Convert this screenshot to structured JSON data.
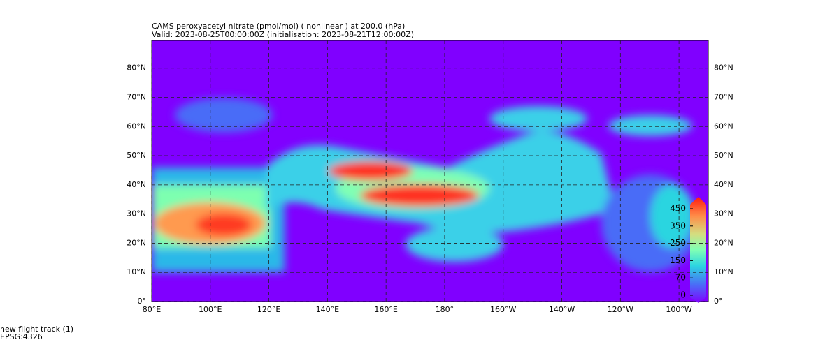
{
  "title": "CAMS peroxyacetyl nitrate (pmol/mol) ( nonlinear ) at 200.0 (hPa)",
  "subtitle": "Valid: 2023-08-25T00:00:00Z (initialisation: 2023-08-21T12:00:00Z)",
  "map": {
    "lonlim": [
      80,
      270
    ],
    "latlim": [
      0,
      89.5
    ],
    "lon_ticks": [
      {
        "value": 80,
        "label": "80°E"
      },
      {
        "value": 100,
        "label": "100°E"
      },
      {
        "value": 120,
        "label": "120°E"
      },
      {
        "value": 140,
        "label": "140°E"
      },
      {
        "value": 160,
        "label": "160°E"
      },
      {
        "value": 180,
        "label": "180°"
      },
      {
        "value": 200,
        "label": "160°W"
      },
      {
        "value": 220,
        "label": "140°W"
      },
      {
        "value": 240,
        "label": "120°W"
      },
      {
        "value": 260,
        "label": "100°W"
      }
    ],
    "lat_ticks": [
      {
        "value": 0,
        "label": "0°"
      },
      {
        "value": 10,
        "label": "10°N"
      },
      {
        "value": 20,
        "label": "20°N"
      },
      {
        "value": 30,
        "label": "30°N"
      },
      {
        "value": 40,
        "label": "40°N"
      },
      {
        "value": 50,
        "label": "50°N"
      },
      {
        "value": 60,
        "label": "60°N"
      },
      {
        "value": 70,
        "label": "70°N"
      },
      {
        "value": 80,
        "label": "80°N"
      }
    ],
    "grid": true
  },
  "colorbar": {
    "ticks": [
      0,
      70,
      150,
      250,
      350,
      450
    ]
  },
  "footer": {
    "layer": "new flight track (1)",
    "crs": "EPSG:4326"
  }
}
